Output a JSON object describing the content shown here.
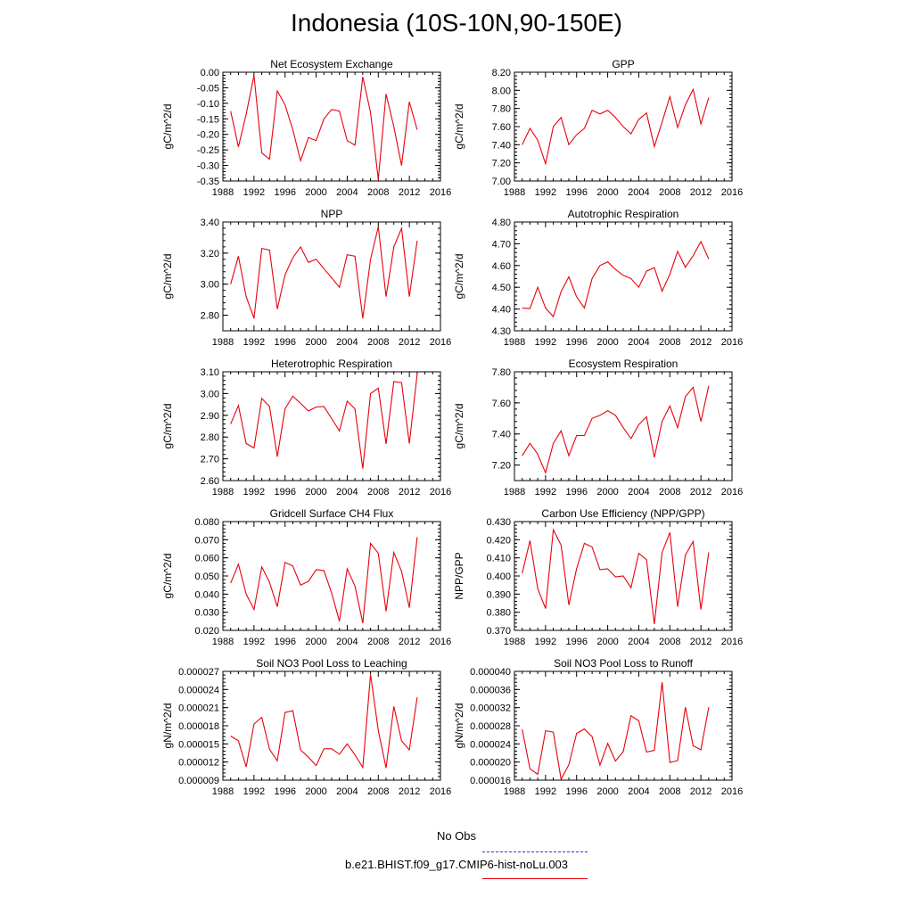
{
  "title": "Indonesia (10S-10N,90-150E)",
  "colors": {
    "series": "#e8000b",
    "obs": "#3333cc",
    "axis": "#000000"
  },
  "legend": [
    {
      "label": "No Obs",
      "color": "#3333cc",
      "style": "dashed"
    },
    {
      "label": "b.e21.BHIST.f09_g17.CMIP6-hist-noLu.003",
      "color": "#e8000b",
      "style": "solid"
    }
  ],
  "chart_data": [
    {
      "type": "line",
      "title": "Net Ecosystem Exchange",
      "ylabel": "gC/m^2/d",
      "xlim": [
        1988,
        2016
      ],
      "xticks": [
        1988,
        1992,
        1996,
        2000,
        2004,
        2008,
        2012,
        2016
      ],
      "ylim": [
        -0.35,
        0.0
      ],
      "yticks": [
        "0.00",
        "-0.05",
        "-0.10",
        "-0.15",
        "-0.20",
        "-0.25",
        "-0.30",
        "-0.35"
      ],
      "x": [
        1989,
        1990,
        1991,
        1992,
        1993,
        1994,
        1995,
        1996,
        1997,
        1998,
        1999,
        2000,
        2001,
        2002,
        2003,
        2004,
        2005,
        2006,
        2007,
        2008,
        2009,
        2010,
        2011,
        2012,
        2013
      ],
      "values": [
        -0.125,
        -0.24,
        -0.135,
        -0.01,
        -0.26,
        -0.28,
        -0.06,
        -0.105,
        -0.185,
        -0.285,
        -0.21,
        -0.22,
        -0.15,
        -0.12,
        -0.125,
        -0.22,
        -0.235,
        -0.015,
        -0.13,
        -0.345,
        -0.07,
        -0.175,
        -0.3,
        -0.095,
        -0.185
      ]
    },
    {
      "type": "line",
      "title": "GPP",
      "ylabel": "gC/m^2/d",
      "xlim": [
        1988,
        2016
      ],
      "xticks": [
        1988,
        1992,
        1996,
        2000,
        2004,
        2008,
        2012,
        2016
      ],
      "ylim": [
        7.0,
        8.2
      ],
      "yticks": [
        "8.20",
        "8.00",
        "7.80",
        "7.60",
        "7.40",
        "7.20",
        "7.00"
      ],
      "x": [
        1989,
        1990,
        1991,
        1992,
        1993,
        1994,
        1995,
        1996,
        1997,
        1998,
        1999,
        2000,
        2001,
        2002,
        2003,
        2004,
        2005,
        2006,
        2007,
        2008,
        2009,
        2010,
        2011,
        2012,
        2013
      ],
      "values": [
        7.4,
        7.58,
        7.45,
        7.19,
        7.6,
        7.7,
        7.4,
        7.51,
        7.58,
        7.78,
        7.74,
        7.78,
        7.7,
        7.6,
        7.52,
        7.68,
        7.75,
        7.38,
        7.65,
        7.93,
        7.59,
        7.84,
        8.01,
        7.63,
        7.92
      ]
    },
    {
      "type": "line",
      "title": "NPP",
      "ylabel": "gC/m^2/d",
      "xlim": [
        1988,
        2016
      ],
      "xticks": [
        1988,
        1992,
        1996,
        2000,
        2004,
        2008,
        2012,
        2016
      ],
      "ylim": [
        2.7,
        3.4
      ],
      "yticks": [
        "3.40",
        "3.20",
        "3.00",
        "2.80"
      ],
      "x": [
        1989,
        1990,
        1991,
        1992,
        1993,
        1994,
        1995,
        1996,
        1997,
        1998,
        1999,
        2000,
        2001,
        2002,
        2003,
        2004,
        2005,
        2006,
        2007,
        2008,
        2009,
        2010,
        2011,
        2012,
        2013
      ],
      "values": [
        3.0,
        3.18,
        2.92,
        2.78,
        3.23,
        3.22,
        2.84,
        3.06,
        3.17,
        3.24,
        3.14,
        3.16,
        3.1,
        3.04,
        2.98,
        3.19,
        3.18,
        2.78,
        3.16,
        3.37,
        2.92,
        3.24,
        3.36,
        2.92,
        3.28
      ]
    },
    {
      "type": "line",
      "title": "Autotrophic Respiration",
      "ylabel": "gC/m^2/d",
      "xlim": [
        1988,
        2016
      ],
      "xticks": [
        1988,
        1992,
        1996,
        2000,
        2004,
        2008,
        2012,
        2016
      ],
      "ylim": [
        4.3,
        4.8
      ],
      "yticks": [
        "4.80",
        "4.70",
        "4.60",
        "4.50",
        "4.40",
        "4.30"
      ],
      "x": [
        1989,
        1990,
        1991,
        1992,
        1993,
        1994,
        1995,
        1996,
        1997,
        1998,
        1999,
        2000,
        2001,
        2002,
        2003,
        2004,
        2005,
        2006,
        2007,
        2008,
        2009,
        2010,
        2011,
        2012,
        2013
      ],
      "values": [
        4.405,
        4.402,
        4.5,
        4.405,
        4.365,
        4.48,
        4.548,
        4.456,
        4.405,
        4.54,
        4.6,
        4.617,
        4.582,
        4.555,
        4.54,
        4.5,
        4.574,
        4.59,
        4.482,
        4.56,
        4.665,
        4.592,
        4.645,
        4.71,
        4.63
      ]
    },
    {
      "type": "line",
      "title": "Heterotrophic Respiration",
      "ylabel": "gC/m^2/d",
      "xlim": [
        1988,
        2016
      ],
      "xticks": [
        1988,
        1992,
        1996,
        2000,
        2004,
        2008,
        2012,
        2016
      ],
      "ylim": [
        2.6,
        3.1
      ],
      "yticks": [
        "3.10",
        "3.00",
        "2.90",
        "2.80",
        "2.70",
        "2.60"
      ],
      "x": [
        1989,
        1990,
        1991,
        1992,
        1993,
        1994,
        1995,
        1996,
        1997,
        1998,
        1999,
        2000,
        2001,
        2002,
        2003,
        2004,
        2005,
        2006,
        2007,
        2008,
        2009,
        2010,
        2011,
        2012,
        2013
      ],
      "values": [
        2.86,
        2.945,
        2.77,
        2.75,
        2.978,
        2.94,
        2.71,
        2.93,
        2.988,
        2.955,
        2.92,
        2.938,
        2.94,
        2.885,
        2.828,
        2.965,
        2.93,
        2.655,
        3.0,
        3.025,
        2.768,
        3.055,
        3.05,
        2.77,
        3.09
      ]
    },
    {
      "type": "line",
      "title": "Ecosystem Respiration",
      "ylabel": "gC/m^2/d",
      "xlim": [
        1988,
        2016
      ],
      "xticks": [
        1988,
        1992,
        1996,
        2000,
        2004,
        2008,
        2012,
        2016
      ],
      "ylim": [
        7.1,
        7.8
      ],
      "yticks": [
        "7.80",
        "7.60",
        "7.40",
        "7.20"
      ],
      "x": [
        1989,
        1990,
        1991,
        1992,
        1993,
        1994,
        1995,
        1996,
        1997,
        1998,
        1999,
        2000,
        2001,
        2002,
        2003,
        2004,
        2005,
        2006,
        2007,
        2008,
        2009,
        2010,
        2011,
        2012,
        2013
      ],
      "values": [
        7.26,
        7.34,
        7.27,
        7.15,
        7.34,
        7.42,
        7.26,
        7.39,
        7.39,
        7.5,
        7.52,
        7.55,
        7.52,
        7.44,
        7.37,
        7.46,
        7.51,
        7.25,
        7.48,
        7.58,
        7.44,
        7.64,
        7.7,
        7.48,
        7.71
      ]
    },
    {
      "type": "line",
      "title": "Gridcell Surface CH4 Flux",
      "ylabel": "gC/m^2/d",
      "xlim": [
        1988,
        2016
      ],
      "xticks": [
        1988,
        1992,
        1996,
        2000,
        2004,
        2008,
        2012,
        2016
      ],
      "ylim": [
        0.02,
        0.08
      ],
      "yticks": [
        "0.080",
        "0.070",
        "0.060",
        "0.050",
        "0.040",
        "0.030",
        "0.020"
      ],
      "x": [
        1989,
        1990,
        1991,
        1992,
        1993,
        1994,
        1995,
        1996,
        1997,
        1998,
        1999,
        2000,
        2001,
        2002,
        2003,
        2004,
        2005,
        2006,
        2007,
        2008,
        2009,
        2010,
        2011,
        2012,
        2013
      ],
      "values": [
        0.046,
        0.0565,
        0.04,
        0.0315,
        0.055,
        0.0465,
        0.033,
        0.0575,
        0.0555,
        0.045,
        0.047,
        0.0535,
        0.053,
        0.0405,
        0.025,
        0.054,
        0.0445,
        0.024,
        0.068,
        0.0625,
        0.0305,
        0.063,
        0.0525,
        0.0325,
        0.0715
      ]
    },
    {
      "type": "line",
      "title": "Carbon Use Efficiency (NPP/GPP)",
      "ylabel": "NPP/GPP",
      "xlim": [
        1988,
        2016
      ],
      "xticks": [
        1988,
        1992,
        1996,
        2000,
        2004,
        2008,
        2012,
        2016
      ],
      "ylim": [
        0.37,
        0.43
      ],
      "yticks": [
        "0.430",
        "0.420",
        "0.410",
        "0.400",
        "0.390",
        "0.380",
        "0.370"
      ],
      "x": [
        1989,
        1990,
        1991,
        1992,
        1993,
        1994,
        1995,
        1996,
        1997,
        1998,
        1999,
        2000,
        2001,
        2002,
        2003,
        2004,
        2005,
        2006,
        2007,
        2008,
        2009,
        2010,
        2011,
        2012,
        2013
      ],
      "values": [
        0.4015,
        0.4195,
        0.393,
        0.382,
        0.4255,
        0.417,
        0.384,
        0.404,
        0.418,
        0.416,
        0.4035,
        0.404,
        0.3995,
        0.4,
        0.3935,
        0.4125,
        0.409,
        0.3735,
        0.413,
        0.424,
        0.383,
        0.4115,
        0.419,
        0.3815,
        0.413
      ]
    },
    {
      "type": "line",
      "title": "Soil NO3 Pool Loss to Leaching",
      "ylabel": "gN/m^2/d",
      "xlim": [
        1988,
        2016
      ],
      "xticks": [
        1988,
        1992,
        1996,
        2000,
        2004,
        2008,
        2012,
        2016
      ],
      "ylim": [
        9e-06,
        2.7e-05
      ],
      "yticks": [
        "0.000027",
        "0.000024",
        "0.000021",
        "0.000018",
        "0.000015",
        "0.000012",
        "0.000009"
      ],
      "x": [
        1989,
        1990,
        1991,
        1992,
        1993,
        1994,
        1995,
        1996,
        1997,
        1998,
        1999,
        2000,
        2001,
        2002,
        2003,
        2004,
        2005,
        2006,
        2007,
        2008,
        2009,
        2010,
        2011,
        2012,
        2013
      ],
      "values": [
        1.63e-05,
        1.55e-05,
        1.12e-05,
        1.83e-05,
        1.94e-05,
        1.41e-05,
        1.22e-05,
        2.02e-05,
        2.05e-05,
        1.4e-05,
        1.28e-05,
        1.14e-05,
        1.42e-05,
        1.42e-05,
        1.33e-05,
        1.5e-05,
        1.32e-05,
        1.11e-05,
        2.65e-05,
        1.72e-05,
        1.1e-05,
        2.12e-05,
        1.55e-05,
        1.4e-05,
        2.27e-05
      ]
    },
    {
      "type": "line",
      "title": "Soil NO3 Pool Loss to Runoff",
      "ylabel": "gN/m^2/d",
      "xlim": [
        1988,
        2016
      ],
      "xticks": [
        1988,
        1992,
        1996,
        2000,
        2004,
        2008,
        2012,
        2016
      ],
      "ylim": [
        1.6e-05,
        4e-05
      ],
      "yticks": [
        "0.000040",
        "0.000036",
        "0.000032",
        "0.000028",
        "0.000024",
        "0.000020",
        "0.000016"
      ],
      "x": [
        1989,
        1990,
        1991,
        1992,
        1993,
        1994,
        1995,
        1996,
        1997,
        1998,
        1999,
        2000,
        2001,
        2002,
        2003,
        2004,
        2005,
        2006,
        2007,
        2008,
        2009,
        2010,
        2011,
        2012,
        2013
      ],
      "values": [
        2.72e-05,
        1.85e-05,
        1.73e-05,
        2.69e-05,
        2.66e-05,
        1.62e-05,
        1.94e-05,
        2.63e-05,
        2.73e-05,
        2.56e-05,
        1.93e-05,
        2.41e-05,
        2.02e-05,
        2.23e-05,
        3.02e-05,
        2.91e-05,
        2.22e-05,
        2.26e-05,
        3.76e-05,
        1.99e-05,
        2.03e-05,
        3.21e-05,
        2.36e-05,
        2.27e-05,
        3.21e-05
      ]
    }
  ]
}
